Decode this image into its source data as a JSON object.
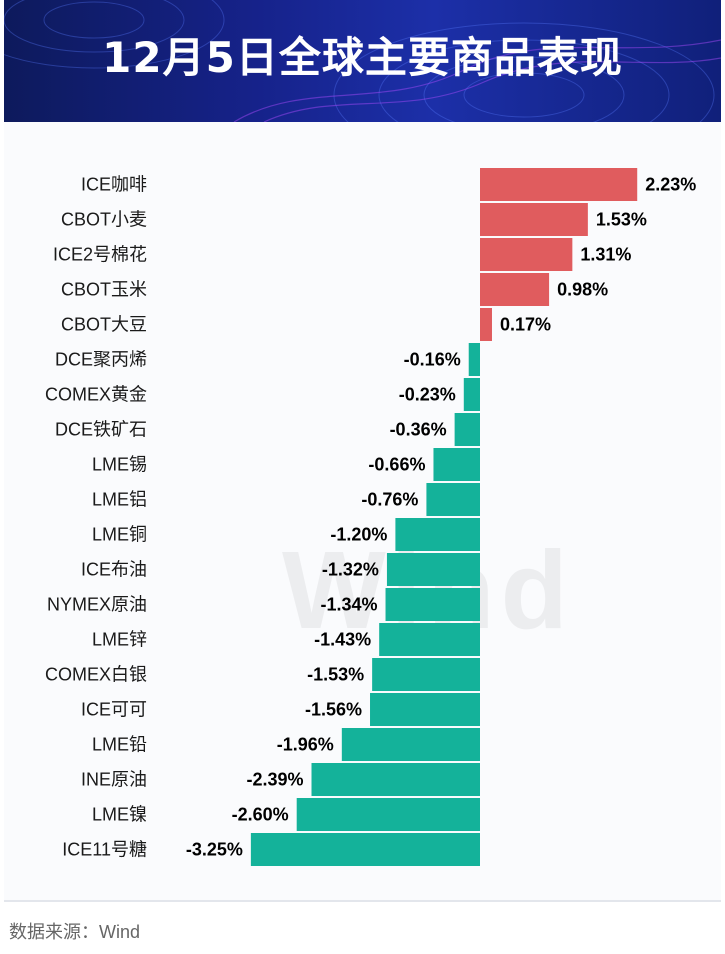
{
  "header": {
    "title": "12月5日全球主要商品表现"
  },
  "watermark": "Wind",
  "source": "数据来源：Wind",
  "colors": {
    "positive": "#e05c5e",
    "negative": "#14b29a"
  },
  "chart_data": {
    "type": "bar",
    "orientation": "horizontal",
    "title": "12月5日全球主要商品表现",
    "unit": "%",
    "xlim": [
      -3.25,
      2.23
    ],
    "categories": [
      "ICE咖啡",
      "CBOT小麦",
      "ICE2号棉花",
      "CBOT玉米",
      "CBOT大豆",
      "DCE聚丙烯",
      "COMEX黄金",
      "DCE铁矿石",
      "LME锡",
      "LME铝",
      "LME铜",
      "ICE布油",
      "NYMEX原油",
      "LME锌",
      "COMEX白银",
      "ICE可可",
      "LME铅",
      "INE原油",
      "LME镍",
      "ICE11号糖"
    ],
    "values": [
      2.23,
      1.53,
      1.31,
      0.98,
      0.17,
      -0.16,
      -0.23,
      -0.36,
      -0.66,
      -0.76,
      -1.2,
      -1.32,
      -1.34,
      -1.43,
      -1.53,
      -1.56,
      -1.96,
      -2.39,
      -2.6,
      -3.25
    ],
    "labels": [
      "2.23%",
      "1.53%",
      "1.31%",
      "0.98%",
      "0.17%",
      "-0.16%",
      "-0.23%",
      "-0.36%",
      "-0.66%",
      "-0.76%",
      "-1.20%",
      "-1.32%",
      "-1.34%",
      "-1.43%",
      "-1.53%",
      "-1.56%",
      "-1.96%",
      "-2.39%",
      "-2.60%",
      "-3.25%"
    ]
  }
}
